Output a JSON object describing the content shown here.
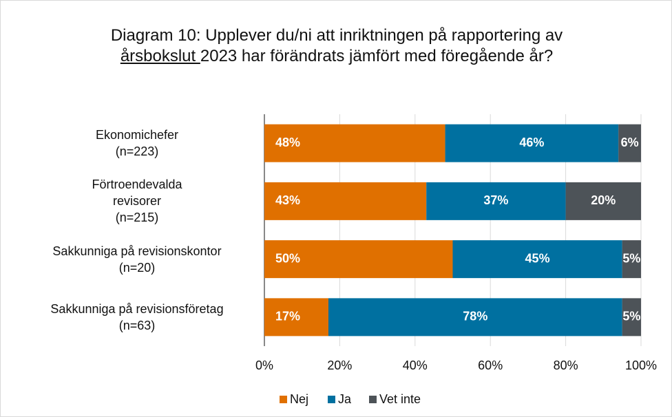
{
  "chart_data": {
    "type": "stacked_barh",
    "title": [
      "Diagram 10: Upplever du/ni att inriktningen på rapportering av",
      " årsbokslut ",
      "2023 har förändrats jämfört med föregående år?"
    ],
    "categories": [
      "Ekonomichefer\n(n=223)",
      "Förtroendevalda\nrevisorer\n(n=215)",
      "Sakkunniga på revisionskontor\n(n=20)",
      "Sakkunniga på revisionsföretag\n(n=63)"
    ],
    "series": [
      {
        "name": "Nej",
        "color": "#e07000",
        "values": [
          48,
          43,
          50,
          17
        ],
        "value_labels": [
          "48%",
          "43%",
          "50%",
          "17%"
        ]
      },
      {
        "name": "Ja",
        "color": "#0070a0",
        "values": [
          46,
          37,
          45,
          78
        ],
        "value_labels": [
          "46%",
          "37%",
          "45%",
          "78%"
        ]
      },
      {
        "name": "Vet inte",
        "color": "#4d5358",
        "values": [
          6,
          20,
          5,
          5
        ],
        "value_labels": [
          "6%",
          "20%",
          "5%",
          "5%"
        ]
      }
    ],
    "xlim": [
      0,
      100
    ],
    "xticks": [
      {
        "value": 0,
        "label": "0%"
      },
      {
        "value": 20,
        "label": "20%"
      },
      {
        "value": 40,
        "label": "40%"
      },
      {
        "value": 60,
        "label": "60%"
      },
      {
        "value": 80,
        "label": "80%"
      },
      {
        "value": 100,
        "label": "100%"
      }
    ],
    "grid": true,
    "legend": "bottom"
  }
}
